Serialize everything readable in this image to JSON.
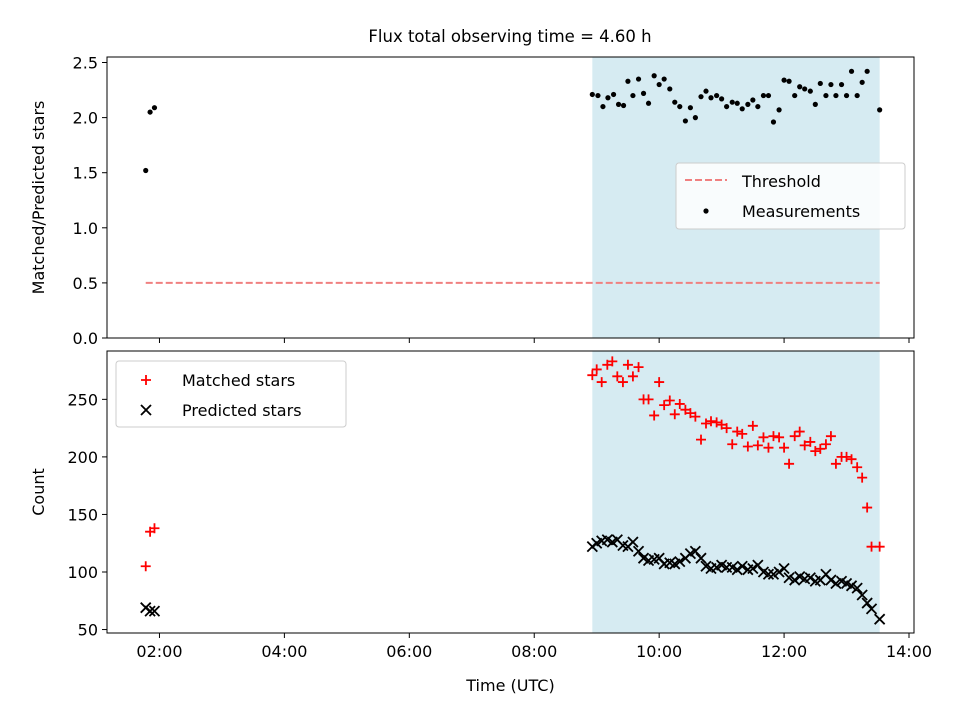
{
  "title": "Flux total observing time = 4.60 h",
  "colors": {
    "threshold": "#f08080",
    "measurement": "#000000",
    "matched": "#ff0000",
    "predicted": "#000000",
    "highlight": "#add8e6"
  },
  "chart_data": [
    {
      "type": "scatter",
      "ylabel": "Matched/Predicted stars",
      "xlim": [
        1.16,
        14.08
      ],
      "ylim": [
        0,
        2.55
      ],
      "yticks": [
        0.0,
        0.5,
        1.0,
        1.5,
        2.0,
        2.5
      ],
      "ytick_labels": [
        "0.0",
        "0.5",
        "1.0",
        "1.5",
        "2.0",
        "2.5"
      ],
      "highlight_span": [
        8.93,
        13.53
      ],
      "threshold": {
        "name": "Threshold",
        "y": 0.5,
        "x": [
          1.78,
          13.53
        ],
        "style": "dashed"
      },
      "legend": {
        "location": "center-right",
        "entries": [
          "Threshold",
          "Measurements"
        ]
      },
      "series": [
        {
          "name": "Measurements",
          "x": [
            1.78,
            1.85,
            1.92,
            8.93,
            9.02,
            9.1,
            9.18,
            9.27,
            9.35,
            9.43,
            9.5,
            9.58,
            9.67,
            9.75,
            9.83,
            9.92,
            10.0,
            10.08,
            10.17,
            10.25,
            10.33,
            10.42,
            10.5,
            10.58,
            10.67,
            10.75,
            10.83,
            10.92,
            11.0,
            11.08,
            11.17,
            11.25,
            11.33,
            11.42,
            11.5,
            11.58,
            11.67,
            11.75,
            11.83,
            11.92,
            12.0,
            12.08,
            12.17,
            12.25,
            12.33,
            12.42,
            12.5,
            12.58,
            12.67,
            12.75,
            12.83,
            12.92,
            13.0,
            13.08,
            13.17,
            13.25,
            13.33,
            13.53
          ],
          "y": [
            1.52,
            2.05,
            2.09,
            2.21,
            2.2,
            2.1,
            2.18,
            2.21,
            2.12,
            2.11,
            2.33,
            2.2,
            2.35,
            2.22,
            2.13,
            2.38,
            2.3,
            2.35,
            2.26,
            2.14,
            2.1,
            1.97,
            2.09,
            2.0,
            2.19,
            2.24,
            2.18,
            2.2,
            2.17,
            2.1,
            2.14,
            2.13,
            2.08,
            2.12,
            2.16,
            2.1,
            2.2,
            2.2,
            1.96,
            2.07,
            2.34,
            2.33,
            2.2,
            2.28,
            2.26,
            2.24,
            2.12,
            2.31,
            2.2,
            2.3,
            2.2,
            2.3,
            2.2,
            2.42,
            2.2,
            2.32,
            2.42,
            2.07
          ]
        }
      ]
    },
    {
      "type": "scatter",
      "xlabel": "Time (UTC)",
      "ylabel": "Count",
      "xlim": [
        1.16,
        14.08
      ],
      "ylim": [
        47,
        292
      ],
      "xticks": [
        2,
        4,
        6,
        8,
        10,
        12,
        14
      ],
      "xtick_labels": [
        "02:00",
        "04:00",
        "06:00",
        "08:00",
        "10:00",
        "12:00",
        "14:00"
      ],
      "yticks": [
        50,
        100,
        150,
        200,
        250
      ],
      "ytick_labels": [
        "50",
        "100",
        "150",
        "200",
        "250"
      ],
      "highlight_span": [
        8.93,
        13.53
      ],
      "legend": {
        "location": "top-left",
        "entries": [
          "Matched stars",
          "Predicted stars"
        ]
      },
      "series": [
        {
          "name": "Matched stars",
          "marker": "plus",
          "x": [
            1.78,
            1.85,
            1.92,
            8.93,
            9.0,
            9.08,
            9.17,
            9.25,
            9.33,
            9.42,
            9.5,
            9.58,
            9.67,
            9.75,
            9.83,
            9.92,
            10.0,
            10.08,
            10.17,
            10.25,
            10.33,
            10.42,
            10.5,
            10.58,
            10.67,
            10.75,
            10.83,
            10.92,
            11.0,
            11.08,
            11.17,
            11.25,
            11.33,
            11.42,
            11.5,
            11.58,
            11.67,
            11.75,
            11.83,
            11.92,
            12.0,
            12.08,
            12.17,
            12.25,
            12.33,
            12.42,
            12.5,
            12.58,
            12.67,
            12.75,
            12.83,
            12.92,
            13.0,
            13.08,
            13.17,
            13.25,
            13.33,
            13.4,
            13.53
          ],
          "y": [
            105,
            135,
            138,
            271,
            276,
            265,
            280,
            283,
            270,
            265,
            280,
            270,
            278,
            250,
            250,
            236,
            265,
            245,
            249,
            237,
            246,
            241,
            238,
            235,
            215,
            229,
            231,
            230,
            228,
            225,
            211,
            222,
            220,
            209,
            227,
            210,
            217,
            208,
            218,
            217,
            208,
            194,
            218,
            222,
            210,
            213,
            205,
            207,
            211,
            218,
            194,
            200,
            200,
            198,
            191,
            182,
            156,
            122,
            122
          ]
        },
        {
          "name": "Predicted stars",
          "marker": "x",
          "x": [
            1.78,
            1.85,
            1.92,
            8.93,
            9.0,
            9.08,
            9.17,
            9.25,
            9.33,
            9.42,
            9.5,
            9.58,
            9.67,
            9.75,
            9.83,
            9.92,
            10.0,
            10.08,
            10.17,
            10.25,
            10.33,
            10.42,
            10.5,
            10.58,
            10.67,
            10.75,
            10.83,
            10.92,
            11.0,
            11.08,
            11.17,
            11.25,
            11.33,
            11.42,
            11.5,
            11.58,
            11.67,
            11.75,
            11.83,
            11.92,
            12.0,
            12.08,
            12.17,
            12.25,
            12.33,
            12.42,
            12.5,
            12.58,
            12.67,
            12.75,
            12.83,
            12.92,
            13.0,
            13.08,
            13.17,
            13.25,
            13.33,
            13.4,
            13.53
          ],
          "y": [
            69,
            66,
            66,
            122,
            125,
            127,
            128,
            126,
            128,
            123,
            122,
            126,
            118,
            112,
            110,
            111,
            112,
            107,
            108,
            107,
            109,
            112,
            116,
            118,
            112,
            105,
            103,
            104,
            106,
            104,
            104,
            102,
            105,
            102,
            103,
            106,
            100,
            98,
            98,
            100,
            103,
            95,
            93,
            96,
            94,
            95,
            92,
            93,
            98,
            93,
            90,
            92,
            90,
            88,
            86,
            80,
            73,
            68,
            59
          ]
        }
      ]
    }
  ]
}
